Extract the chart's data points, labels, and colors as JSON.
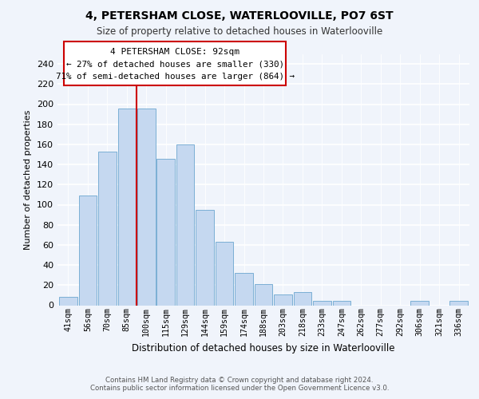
{
  "title": "4, PETERSHAM CLOSE, WATERLOOVILLE, PO7 6ST",
  "subtitle": "Size of property relative to detached houses in Waterlooville",
  "xlabel": "Distribution of detached houses by size in Waterlooville",
  "ylabel": "Number of detached properties",
  "bar_labels": [
    "41sqm",
    "56sqm",
    "70sqm",
    "85sqm",
    "100sqm",
    "115sqm",
    "129sqm",
    "144sqm",
    "159sqm",
    "174sqm",
    "188sqm",
    "203sqm",
    "218sqm",
    "233sqm",
    "247sqm",
    "262sqm",
    "277sqm",
    "292sqm",
    "306sqm",
    "321sqm",
    "336sqm"
  ],
  "bar_values": [
    8,
    109,
    153,
    196,
    196,
    146,
    160,
    95,
    63,
    32,
    21,
    11,
    13,
    4,
    4,
    0,
    0,
    0,
    4,
    0,
    4
  ],
  "bar_color": "#c5d8f0",
  "bar_edge_color": "#7bafd4",
  "vline_x": 3.5,
  "vline_color": "#cc0000",
  "annotation_line1": "4 PETERSHAM CLOSE: 92sqm",
  "annotation_line2": "← 27% of detached houses are smaller (330)",
  "annotation_line3": "71% of semi-detached houses are larger (864) →",
  "box_color": "white",
  "box_edge_color": "#cc0000",
  "ylim": [
    0,
    250
  ],
  "yticks": [
    0,
    20,
    40,
    60,
    80,
    100,
    120,
    140,
    160,
    180,
    200,
    220,
    240
  ],
  "footer_line1": "Contains HM Land Registry data © Crown copyright and database right 2024.",
  "footer_line2": "Contains public sector information licensed under the Open Government Licence v3.0.",
  "background_color": "#f0f4fb"
}
